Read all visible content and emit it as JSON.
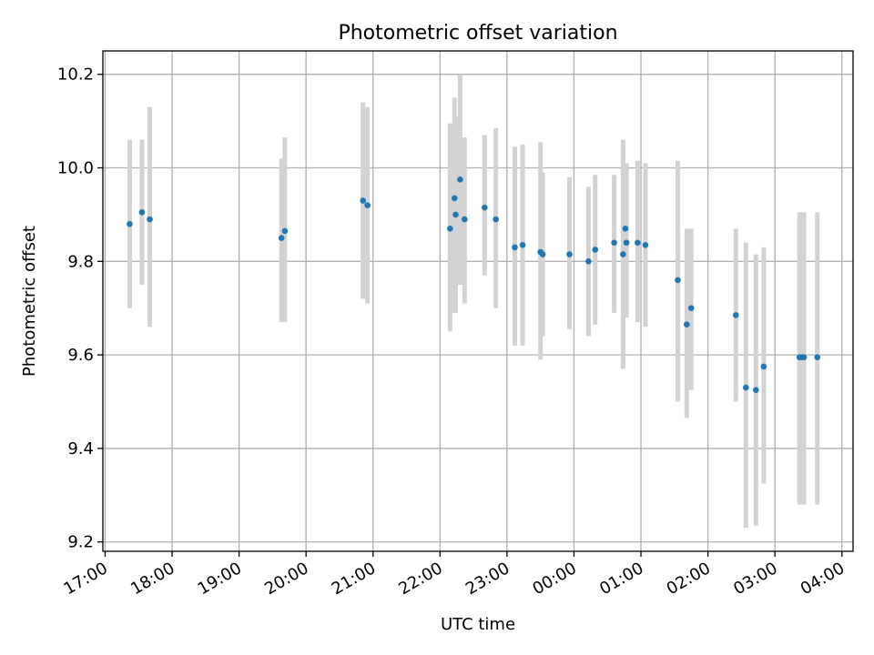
{
  "chart_data": {
    "type": "scatter",
    "title": "Photometric offset variation",
    "xlabel": "UTC time",
    "ylabel": "Photometric offset",
    "x_tick_labels": [
      "17:00",
      "18:00",
      "19:00",
      "20:00",
      "21:00",
      "22:00",
      "23:00",
      "00:00",
      "01:00",
      "02:00",
      "03:00",
      "04:00"
    ],
    "y_tick_labels": [
      "9.2",
      "9.4",
      "9.6",
      "9.8",
      "10.0",
      "10.2"
    ],
    "y_ticks": [
      9.2,
      9.4,
      9.6,
      9.8,
      10.0,
      10.2
    ],
    "xlim": [
      "16:58",
      "04:10"
    ],
    "ylim": [
      9.18,
      10.25
    ],
    "grid": true,
    "colors": {
      "point": "#1f77b4",
      "errorbar": "#d3d3d3",
      "grid": "#b0b0b0"
    },
    "points": [
      {
        "t": "17:22",
        "y": 9.88,
        "lo": 9.7,
        "hi": 10.06
      },
      {
        "t": "17:33",
        "y": 9.905,
        "lo": 9.75,
        "hi": 10.06
      },
      {
        "t": "17:40",
        "y": 9.89,
        "lo": 9.66,
        "hi": 10.13
      },
      {
        "t": "19:38",
        "y": 9.85,
        "lo": 9.67,
        "hi": 10.02
      },
      {
        "t": "19:41",
        "y": 9.865,
        "lo": 9.67,
        "hi": 10.065
      },
      {
        "t": "20:51",
        "y": 9.93,
        "lo": 9.72,
        "hi": 10.14
      },
      {
        "t": "20:55",
        "y": 9.92,
        "lo": 9.71,
        "hi": 10.13
      },
      {
        "t": "22:09",
        "y": 9.87,
        "lo": 9.65,
        "hi": 10.095
      },
      {
        "t": "22:13",
        "y": 9.935,
        "lo": 9.69,
        "hi": 10.15
      },
      {
        "t": "22:14",
        "y": 9.9,
        "lo": 9.69,
        "hi": 10.11
      },
      {
        "t": "22:18",
        "y": 9.975,
        "lo": 9.75,
        "hi": 10.2
      },
      {
        "t": "22:22",
        "y": 9.89,
        "lo": 9.71,
        "hi": 10.065
      },
      {
        "t": "22:40",
        "y": 9.915,
        "lo": 9.77,
        "hi": 10.07
      },
      {
        "t": "22:50",
        "y": 9.89,
        "lo": 9.7,
        "hi": 10.085
      },
      {
        "t": "23:07",
        "y": 9.83,
        "lo": 9.62,
        "hi": 10.045
      },
      {
        "t": "23:14",
        "y": 9.835,
        "lo": 9.62,
        "hi": 10.05
      },
      {
        "t": "23:30",
        "y": 9.82,
        "lo": 9.59,
        "hi": 10.055
      },
      {
        "t": "23:32",
        "y": 9.815,
        "lo": 9.64,
        "hi": 9.99
      },
      {
        "t": "23:56",
        "y": 9.815,
        "lo": 9.655,
        "hi": 9.98
      },
      {
        "t": "00:13",
        "y": 9.8,
        "lo": 9.64,
        "hi": 9.96
      },
      {
        "t": "00:19",
        "y": 9.825,
        "lo": 9.665,
        "hi": 9.985
      },
      {
        "t": "00:36",
        "y": 9.84,
        "lo": 9.69,
        "hi": 9.985
      },
      {
        "t": "00:44",
        "y": 9.815,
        "lo": 9.57,
        "hi": 10.06
      },
      {
        "t": "00:46",
        "y": 9.87,
        "lo": 9.68,
        "hi": 10.01
      },
      {
        "t": "00:47",
        "y": 9.84,
        "lo": 9.68,
        "hi": 10.01
      },
      {
        "t": "00:57",
        "y": 9.84,
        "lo": 9.67,
        "hi": 10.015
      },
      {
        "t": "01:04",
        "y": 9.835,
        "lo": 9.66,
        "hi": 10.01
      },
      {
        "t": "01:33",
        "y": 9.76,
        "lo": 9.5,
        "hi": 10.015
      },
      {
        "t": "01:41",
        "y": 9.665,
        "lo": 9.465,
        "hi": 9.87
      },
      {
        "t": "01:45",
        "y": 9.7,
        "lo": 9.525,
        "hi": 9.87
      },
      {
        "t": "02:25",
        "y": 9.685,
        "lo": 9.5,
        "hi": 9.87
      },
      {
        "t": "02:34",
        "y": 9.53,
        "lo": 9.23,
        "hi": 9.84
      },
      {
        "t": "02:43",
        "y": 9.525,
        "lo": 9.235,
        "hi": 9.815
      },
      {
        "t": "02:50",
        "y": 9.575,
        "lo": 9.325,
        "hi": 9.83
      },
      {
        "t": "03:22",
        "y": 9.595,
        "lo": 9.28,
        "hi": 9.905
      },
      {
        "t": "03:24",
        "y": 9.595,
        "lo": 9.28,
        "hi": 9.905
      },
      {
        "t": "03:26",
        "y": 9.595,
        "lo": 9.28,
        "hi": 9.905
      },
      {
        "t": "03:38",
        "y": 9.595,
        "lo": 9.28,
        "hi": 9.905
      }
    ]
  }
}
